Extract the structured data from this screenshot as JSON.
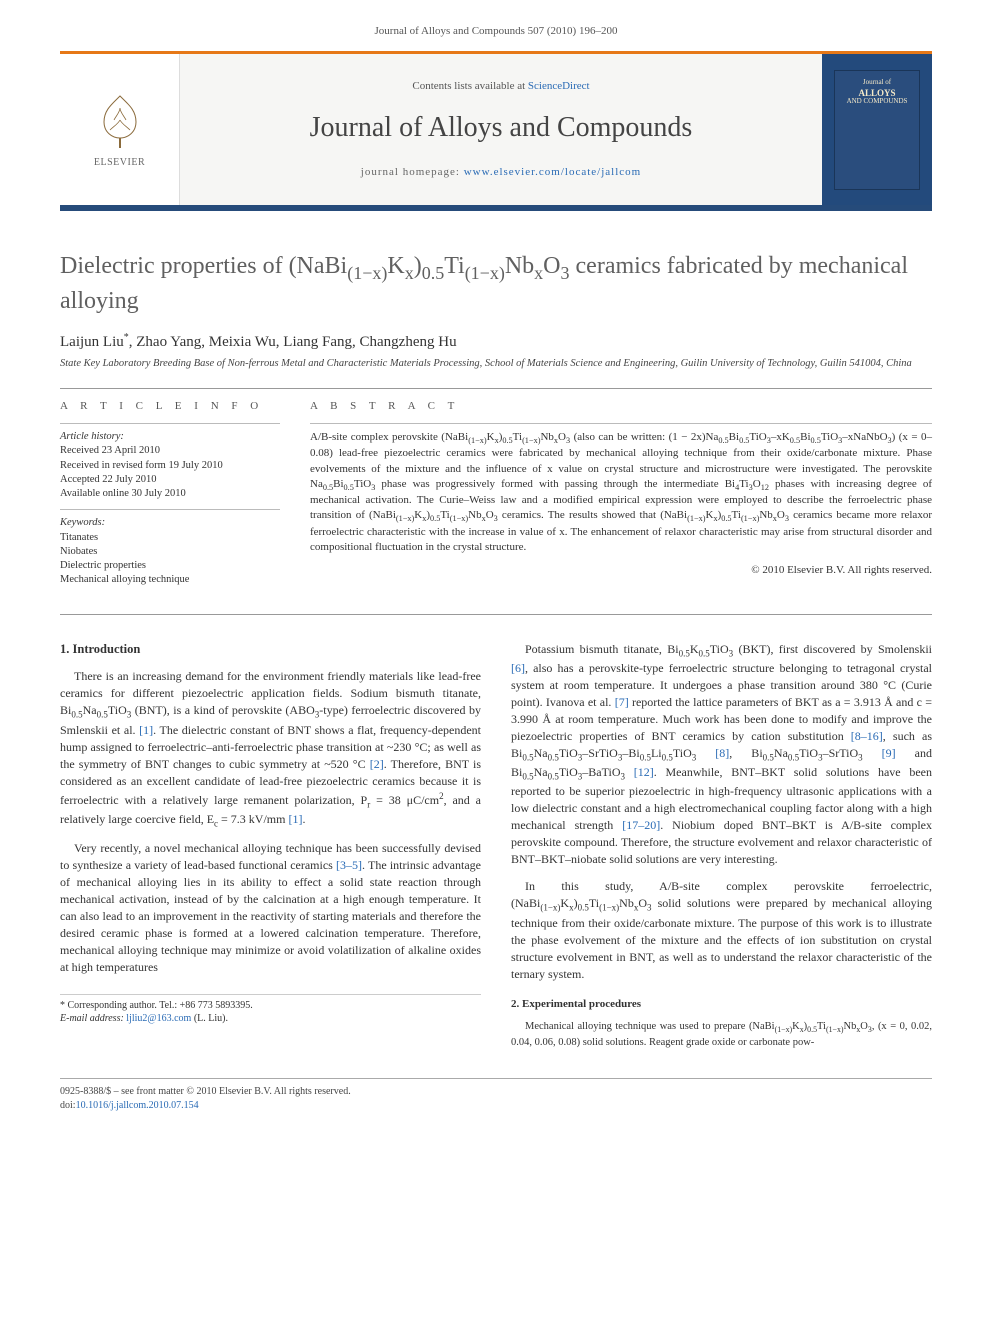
{
  "page_header": "Journal of Alloys and Compounds 507 (2010) 196–200",
  "masthead": {
    "publisher_label": "ELSEVIER",
    "contents_prefix": "Contents lists available at ",
    "contents_link": "ScienceDirect",
    "journal_title": "Journal of Alloys and Compounds",
    "homepage_prefix": "journal homepage: ",
    "homepage_link": "www.elsevier.com/locate/jallcom",
    "cover_line1": "Journal of",
    "cover_line2": "ALLOYS",
    "cover_line3": "AND COMPOUNDS"
  },
  "article": {
    "title_html": "Dielectric properties of (NaBi<sub>(1−x)</sub>K<sub>x</sub>)<sub>0.5</sub>Ti<sub>(1−x)</sub>Nb<sub>x</sub>O<sub>3</sub> ceramics fabricated by mechanical alloying",
    "authors_html": "Laijun Liu<sup>*</sup>, Zhao Yang, Meixia Wu, Liang Fang, Changzheng Hu",
    "affiliation": "State Key Laboratory Breeding Base of Non-ferrous Metal and Characteristic Materials Processing, School of Materials Science and Engineering, Guilin University of Technology, Guilin 541004, China"
  },
  "info": {
    "label_info": "A R T I C L E   I N F O",
    "label_abstract": "A B S T R A C T",
    "history_label": "Article history:",
    "history": [
      "Received 23 April 2010",
      "Received in revised form 19 July 2010",
      "Accepted 22 July 2010",
      "Available online 30 July 2010"
    ],
    "keywords_label": "Keywords:",
    "keywords": [
      "Titanates",
      "Niobates",
      "Dielectric properties",
      "Mechanical alloying technique"
    ]
  },
  "abstract_html": "A/B-site complex perovskite (NaBi<sub>(1−x)</sub>K<sub>x</sub>)<sub>0.5</sub>Ti<sub>(1−x)</sub>Nb<sub>x</sub>O<sub>3</sub> (also can be written: (1 − 2x)Na<sub>0.5</sub>Bi<sub>0.5</sub>TiO<sub>3</sub>–xK<sub>0.5</sub>Bi<sub>0.5</sub>TiO<sub>3</sub>–xNaNbO<sub>3</sub>) (x = 0–0.08) lead-free piezoelectric ceramics were fabricated by mechanical alloying technique from their oxide/carbonate mixture. Phase evolvements of the mixture and the influence of x value on crystal structure and microstructure were investigated. The perovskite Na<sub>0.5</sub>Bi<sub>0.5</sub>TiO<sub>3</sub> phase was progressively formed with passing through the intermediate Bi<sub>4</sub>Ti<sub>3</sub>O<sub>12</sub> phases with increasing degree of mechanical activation. The Curie–Weiss law and a modified empirical expression were employed to describe the ferroelectric phase transition of (NaBi<sub>(1−x)</sub>K<sub>x</sub>)<sub>0.5</sub>Ti<sub>(1−x)</sub>Nb<sub>x</sub>O<sub>3</sub> ceramics. The results showed that (NaBi<sub>(1−x)</sub>K<sub>x</sub>)<sub>0.5</sub>Ti<sub>(1−x)</sub>Nb<sub>x</sub>O<sub>3</sub> ceramics became more relaxor ferroelectric characteristic with the increase in value of x. The enhancement of relaxor characteristic may arise from structural disorder and compositional fluctuation in the crystal structure.",
  "copyright": "© 2010 Elsevier B.V. All rights reserved.",
  "body": {
    "intro_heading": "1.  Introduction",
    "exp_heading": "2.  Experimental procedures",
    "left_p1_html": "There is an increasing demand for the environment friendly materials like lead-free ceramics for different piezoelectric application fields. Sodium bismuth titanate, Bi<sub>0.5</sub>Na<sub>0.5</sub>TiO<sub>3</sub> (BNT), is a kind of perovskite (ABO<sub>3</sub>-type) ferroelectric discovered by Smlenskii et al. <a class=\"ref\">[1]</a>. The dielectric constant of BNT shows a flat, frequency-dependent hump assigned to ferroelectric–anti-ferroelectric phase transition at ~230 °C; as well as the symmetry of BNT changes to cubic symmetry at ~520 °C <a class=\"ref\">[2]</a>. Therefore, BNT is considered as an excellent candidate of lead-free piezoelectric ceramics because it is ferroelectric with a relatively large remanent polarization, P<sub>r</sub> = 38 μC/cm<sup>2</sup>, and a relatively large coercive field, E<sub>c</sub> = 7.3 kV/mm <a class=\"ref\">[1]</a>.",
    "left_p2_html": "Very recently, a novel mechanical alloying technique has been successfully devised to synthesize a variety of lead-based functional ceramics <a class=\"ref\">[3–5]</a>. The intrinsic advantage of mechanical alloying lies in its ability to effect a solid state reaction through mechanical activation, instead of by the calcination at a high enough temperature. It can also lead to an improvement in the reactivity of starting materials and therefore the desired ceramic phase is formed at a lowered calcination temperature. Therefore, mechanical alloying technique may minimize or avoid volatilization of alkaline oxides at high temperatures",
    "right_p1_html": "Potassium bismuth titanate, Bi<sub>0.5</sub>K<sub>0.5</sub>TiO<sub>3</sub> (BKT), first discovered by Smolenskii <a class=\"ref\">[6]</a>, also has a perovskite-type ferroelectric structure belonging to tetragonal crystal system at room temperature. It undergoes a phase transition around 380 °C (Curie point). Ivanova et al. <a class=\"ref\">[7]</a> reported the lattice parameters of BKT as a = 3.913 Å and c = 3.990 Å at room temperature. Much work has been done to modify and improve the piezoelectric properties of BNT ceramics by cation substitution <a class=\"ref\">[8–16]</a>, such as Bi<sub>0.5</sub>Na<sub>0.5</sub>TiO<sub>3</sub>–SrTiO<sub>3</sub>–Bi<sub>0.5</sub>Li<sub>0.5</sub>TiO<sub>3</sub> <a class=\"ref\">[8]</a>, Bi<sub>0.5</sub>Na<sub>0.5</sub>TiO<sub>3</sub>–SrTiO<sub>3</sub> <a class=\"ref\">[9]</a> and Bi<sub>0.5</sub>Na<sub>0.5</sub>TiO<sub>3</sub>–BaTiO<sub>3</sub> <a class=\"ref\">[12]</a>. Meanwhile, BNT–BKT solid solutions have been reported to be superior piezoelectric in high-frequency ultrasonic applications with a low dielectric constant and a high electromechanical coupling factor along with a high mechanical strength <a class=\"ref\">[17–20]</a>. Niobium doped BNT–BKT is A/B-site complex perovskite compound. Therefore, the structure evolvement and relaxor characteristic of BNT–BKT–niobate solid solutions are very interesting.",
    "right_p2_html": "In this study, A/B-site complex perovskite ferroelectric, (NaBi<sub>(1−x)</sub>K<sub>x</sub>)<sub>0.5</sub>Ti<sub>(1−x)</sub>Nb<sub>x</sub>O<sub>3</sub> solid solutions were prepared by mechanical alloying technique from their oxide/carbonate mixture. The purpose of this work is to illustrate the phase evolvement of the mixture and the effects of ion substitution on crystal structure evolvement in BNT, as well as to understand the relaxor characteristic of the ternary system.",
    "right_exp_html": "Mechanical alloying technique was used to prepare (NaBi<sub>(1−x)</sub>K<sub>x</sub>)<sub>0.5</sub>Ti<sub>(1−x)</sub>Nb<sub>x</sub>O<sub>3</sub>, (x = 0, 0.02, 0.04, 0.06, 0.08) solid solutions. Reagent grade oxide or carbonate pow-"
  },
  "corr": {
    "line1": "* Corresponding author. Tel.: +86 773 5893395.",
    "email_label": "E-mail address: ",
    "email": "ljliu2@163.com",
    "email_suffix": " (L. Liu)."
  },
  "footer": {
    "line1": "0925-8388/$ – see front matter © 2010 Elsevier B.V. All rights reserved.",
    "doi_label": "doi:",
    "doi": "10.1016/j.jallcom.2010.07.154"
  },
  "colors": {
    "orange_rule": "#e67817",
    "blue_rule": "#264b7a",
    "link": "#2a6bb5",
    "text": "#333333",
    "muted": "#606060"
  }
}
